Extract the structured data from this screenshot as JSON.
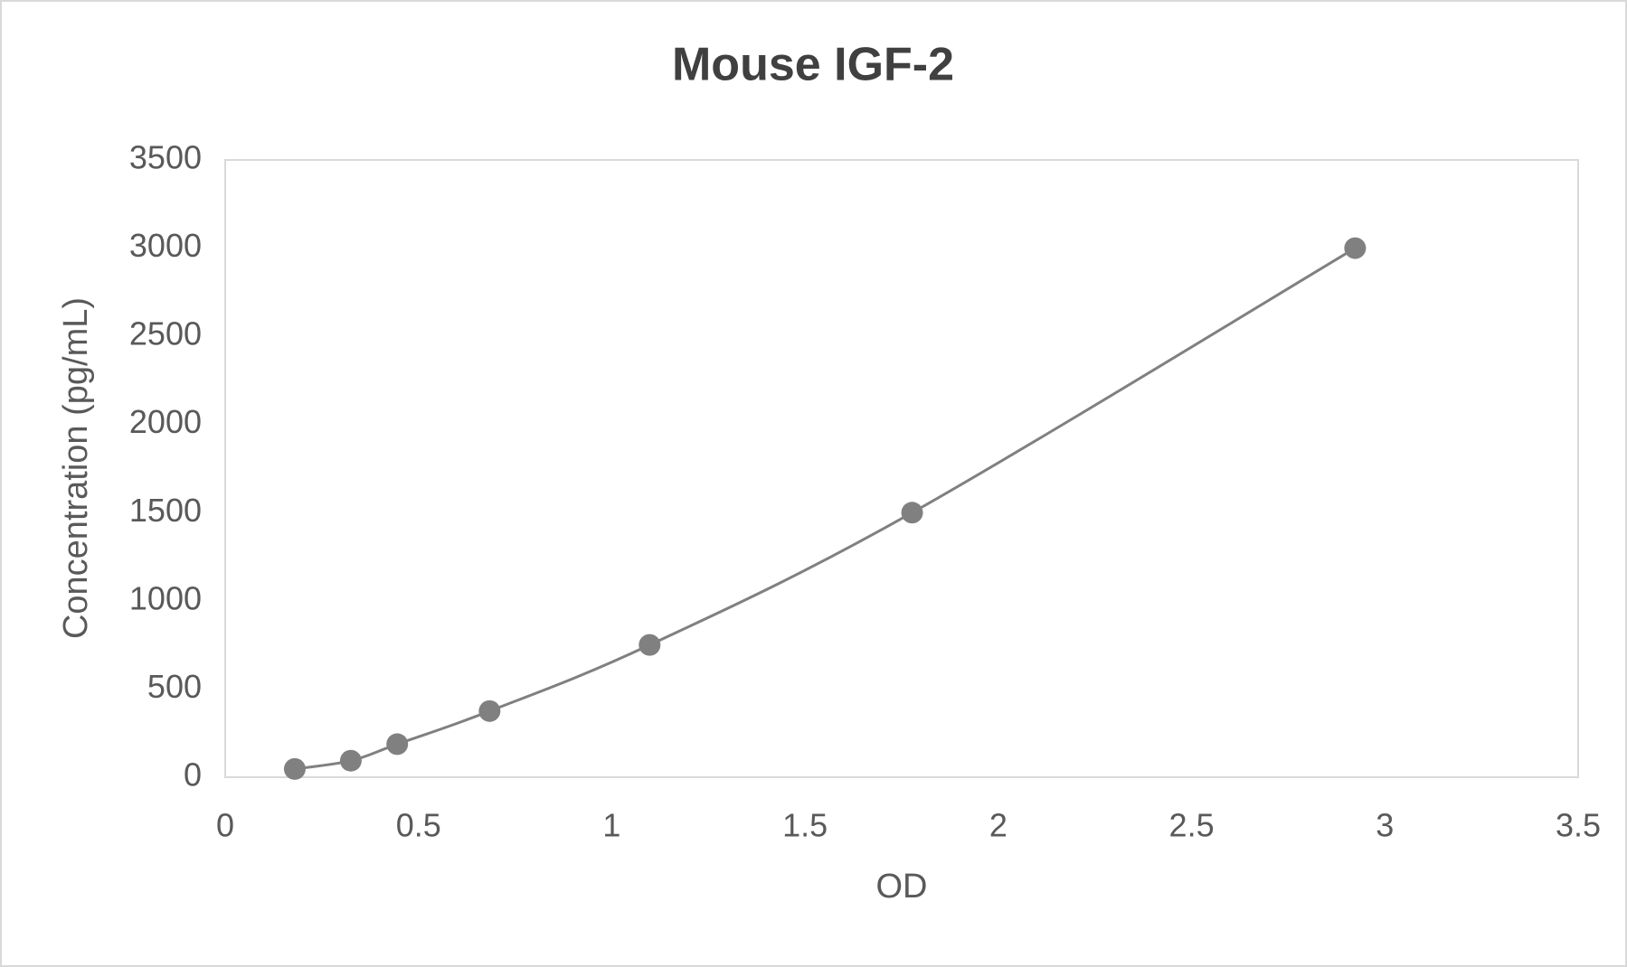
{
  "chart_data": {
    "type": "scatter",
    "title": "Mouse IGF-2",
    "x_label": "OD",
    "y_label": "Concentration (pg/mL)",
    "series": [
      {
        "color": "#808080",
        "x": [
          0.18,
          0.325,
          0.445,
          0.684,
          1.098,
          1.777,
          2.923
        ],
        "values": [
          46.875,
          93.75,
          187.5,
          375,
          750,
          1500,
          3000
        ]
      }
    ],
    "xlim": [
      0,
      3.5
    ],
    "xticks": [
      0,
      0.5,
      1,
      1.5,
      2,
      2.5,
      3,
      3.5
    ],
    "ylim": [
      0,
      3500
    ],
    "yticks": [
      0,
      500,
      1000,
      1500,
      2000,
      2500,
      3000,
      3500
    ],
    "smooth_line": true,
    "grid": false
  }
}
